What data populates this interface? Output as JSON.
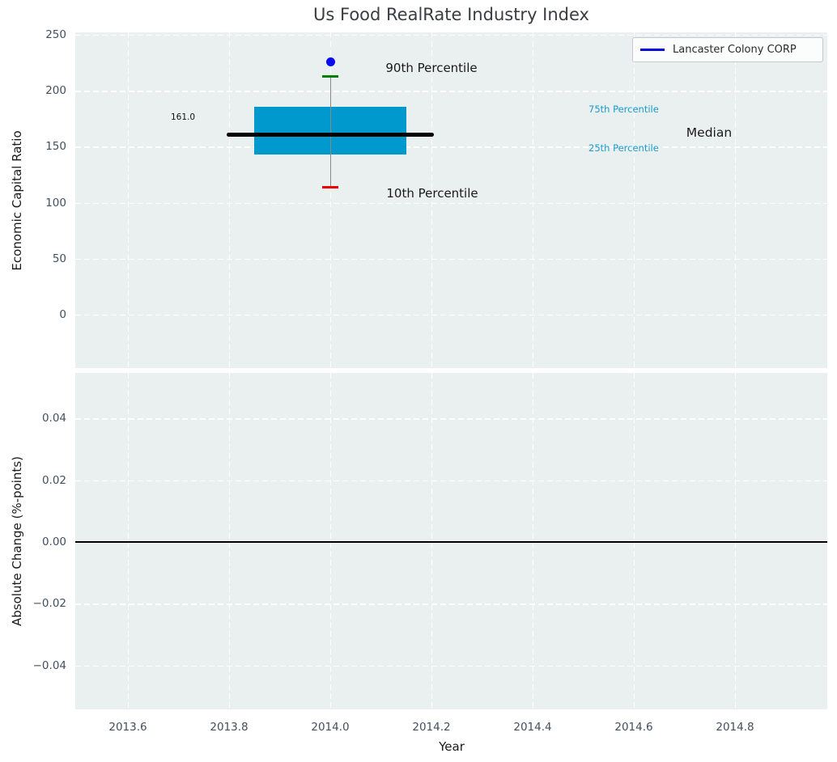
{
  "figure": {
    "title": "Us Food RealRate Industry Index"
  },
  "legend": {
    "label": "Lancaster Colony CORP",
    "line_color": "#0000dd"
  },
  "top_plot": {
    "ylabel": "Economic Capital Ratio",
    "yticks": [
      {
        "label": "250",
        "v": 250
      },
      {
        "label": "200",
        "v": 200
      },
      {
        "label": "150",
        "v": 150
      },
      {
        "label": "100",
        "v": 100
      },
      {
        "label": "50",
        "v": 50
      },
      {
        "label": "0",
        "v": 0
      }
    ],
    "annotations": {
      "p90_label": "90th Percentile",
      "p10_label": "10th Percentile",
      "p75_label": "75th Percentile",
      "p25_label": "25th Percentile",
      "median_label": "Median",
      "median_value": "161.0"
    }
  },
  "bottom_plot": {
    "ylabel": "Absolute Change (%-points)",
    "xlabel": "Year",
    "yticks": [
      {
        "label": "0.04",
        "v": 0.04
      },
      {
        "label": "0.02",
        "v": 0.02
      },
      {
        "label": "0.00",
        "v": 0.0
      },
      {
        "label": "−0.02",
        "v": -0.02
      },
      {
        "label": "−0.04",
        "v": -0.04
      }
    ],
    "xticks": [
      {
        "label": "2013.6",
        "v": 2013.6
      },
      {
        "label": "2013.8",
        "v": 2013.8
      },
      {
        "label": "2014.0",
        "v": 2014.0
      },
      {
        "label": "2014.2",
        "v": 2014.2
      },
      {
        "label": "2014.4",
        "v": 2014.4
      },
      {
        "label": "2014.6",
        "v": 2014.6
      },
      {
        "label": "2014.8",
        "v": 2014.8
      }
    ]
  },
  "colors": {
    "plot_background": "#eaeff0",
    "gridline": "#ffffff",
    "iqr_box": "#0099cd",
    "median_line": "#000000",
    "whisker_line": "#888888",
    "p90_cap": "#008000",
    "p10_cap": "#ee0000",
    "company_point": "#0b0bf0",
    "percentile_text": "#189bce",
    "zero_line": "#000000"
  },
  "chart_data": [
    {
      "type": "boxplot",
      "title": "Us Food RealRate Industry Index",
      "xlabel": "Year",
      "ylabel": "Economic Capital Ratio",
      "x": 2014.0,
      "stats": {
        "p10": 114,
        "p25": 143,
        "median": 161.0,
        "p75": 186,
        "p90": 213
      },
      "median_data_label": "161.0",
      "box_half_width": 0.15,
      "median_line_half_width": 0.205,
      "company_point": {
        "name": "Lancaster Colony CORP",
        "x": 2014.0,
        "y": 226
      },
      "xlim": [
        2013.5,
        2014.98
      ],
      "ylim": [
        -48,
        252
      ],
      "grid": true,
      "legend_position": "upper right"
    },
    {
      "type": "line",
      "xlabel": "Year",
      "ylabel": "Absolute Change (%-points)",
      "series": [],
      "zero_line_y": 0.0,
      "xlim": [
        2013.5,
        2014.98
      ],
      "ylim": [
        -0.054,
        0.054
      ],
      "grid": true
    }
  ]
}
